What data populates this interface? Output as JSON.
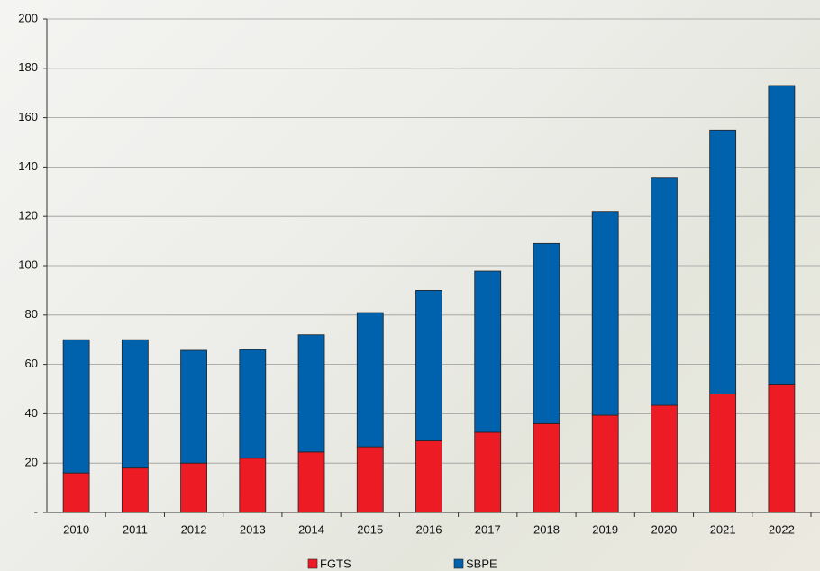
{
  "chart_data": {
    "type": "stacked-bar",
    "categories": [
      "2010",
      "2011",
      "2012",
      "2013",
      "2014",
      "2015",
      "2016",
      "2017",
      "2018",
      "2019",
      "2020",
      "2021",
      "2022"
    ],
    "series": [
      {
        "name": "FGTS",
        "color": "#ed1c24",
        "values": [
          16,
          18,
          20,
          22,
          24.5,
          26.6,
          29,
          32.5,
          36,
          39.4,
          43.4,
          48,
          52
        ]
      },
      {
        "name": "SBPE",
        "color": "#0061ad",
        "values": [
          54,
          52,
          45.7,
          44,
          47.5,
          54.4,
          61,
          65.3,
          73,
          82.6,
          92.1,
          107,
          121
        ]
      }
    ],
    "ylim": [
      0,
      200
    ],
    "yticks": [
      {
        "value": 0,
        "label": "-"
      },
      20,
      40,
      60,
      80,
      100,
      120,
      140,
      160,
      180,
      200
    ],
    "grid": true,
    "legend": "bottom"
  }
}
